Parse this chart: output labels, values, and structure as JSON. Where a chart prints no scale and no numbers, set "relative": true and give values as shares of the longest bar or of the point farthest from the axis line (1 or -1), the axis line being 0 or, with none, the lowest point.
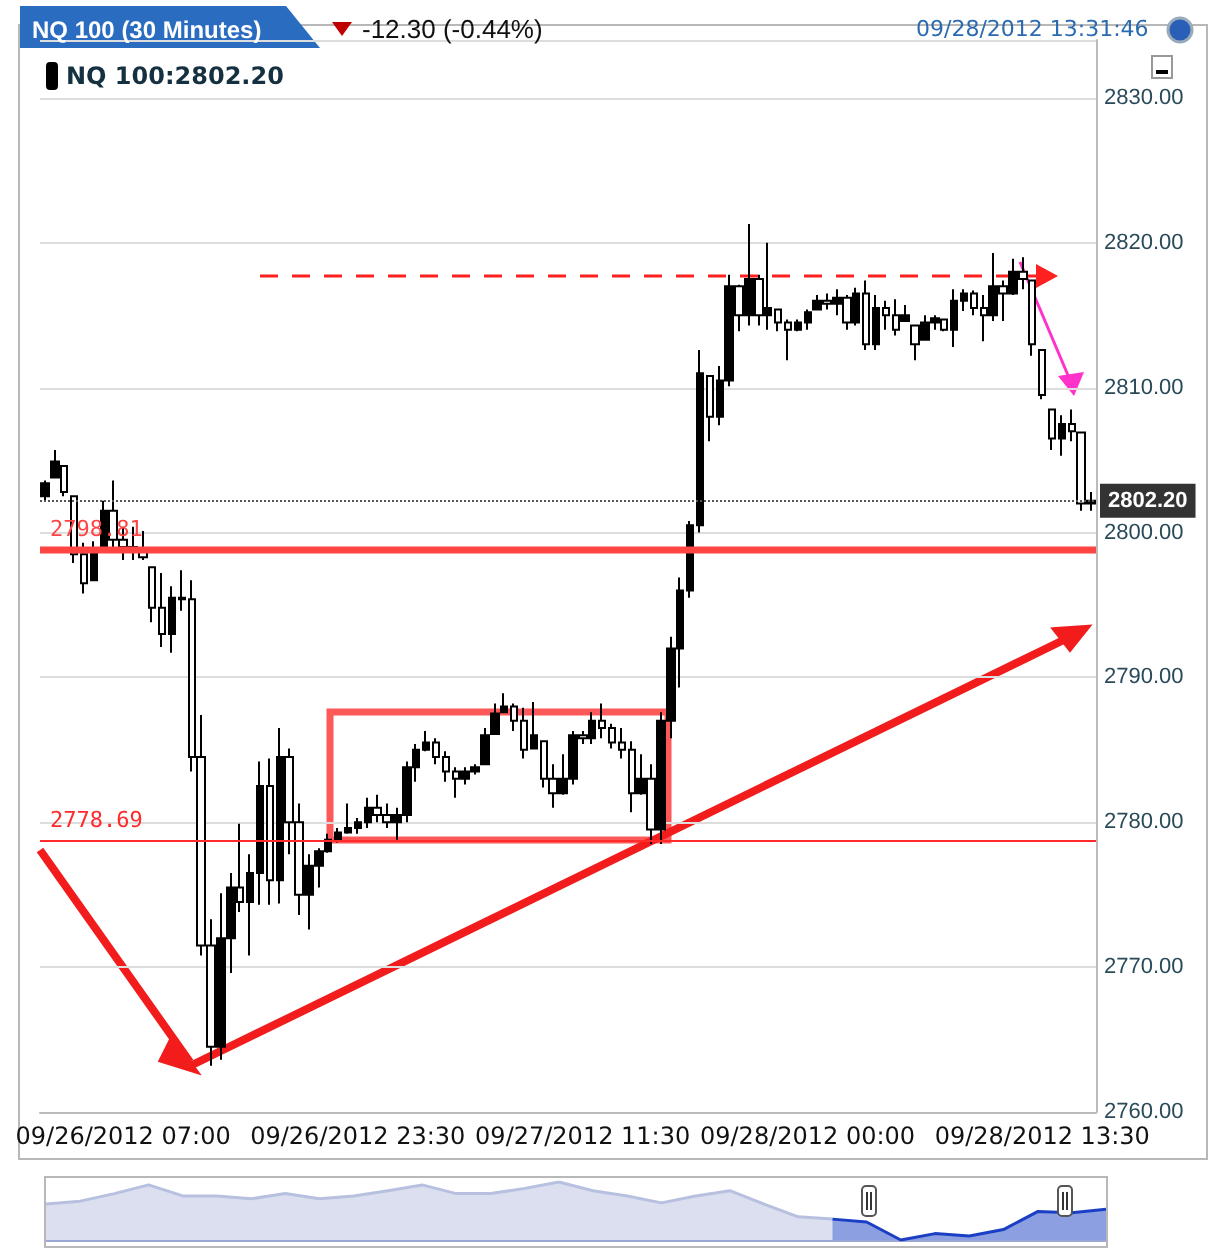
{
  "chart_data": [
    {
      "type": "candlestick",
      "title": "NQ 100 (30 Minutes)",
      "annotations": [
        "-12.30 (-0.44%)",
        "09/28/2012 13:31:46"
      ],
      "categories": [
        null,
        null,
        null,
        null,
        null,
        null,
        null,
        null,
        "09/26/2012 07:00",
        null,
        null,
        null,
        null,
        null,
        null,
        null,
        null,
        null,
        null,
        null,
        null,
        null,
        null,
        null,
        null,
        null,
        null,
        null,
        null,
        null,
        null,
        null,
        "09/26/2012 23:30",
        null,
        null,
        null,
        null,
        null,
        null,
        null,
        null,
        null,
        null,
        null,
        null,
        null,
        null,
        null,
        null,
        null,
        null,
        null,
        null,
        null,
        null,
        "09/27/2012 11:30",
        null,
        null,
        null,
        null,
        null,
        null,
        null,
        null,
        null,
        null,
        null,
        null,
        null,
        null,
        null,
        null,
        null,
        null,
        null,
        null,
        null,
        null,
        "09/28/2012 00:00",
        null,
        null,
        null,
        null,
        null,
        null,
        null,
        null,
        null,
        null,
        null,
        null,
        null,
        null,
        null,
        null,
        null,
        null,
        null,
        null,
        null,
        null,
        null,
        "09/28/2012 13:30",
        null,
        null,
        null,
        null,
        null
      ],
      "series": [
        {
          "name": "NQ 100:2802.20",
          "color": "#000000",
          "ohlc": [
            [
              2802.5,
              2803.6,
              2802.2,
              2803.4
            ],
            [
              2803.8,
              2805.7,
              2803.8,
              2804.9
            ],
            [
              2804.6,
              2804.6,
              2802.5,
              2802.8
            ],
            [
              2802.5,
              2802.5,
              2797.9,
              2798.5
            ],
            [
              2798.5,
              2799.3,
              2795.8,
              2796.5
            ],
            [
              2796.7,
              2799.4,
              2796.7,
              2798.9
            ],
            [
              2799.0,
              2802.2,
              2799.0,
              2801.5
            ],
            [
              2801.5,
              2803.6,
              2798.8,
              2799.5
            ],
            [
              2799.5,
              2800.4,
              2798.1,
              2799.0
            ],
            [
              2799.0,
              2800.4,
              2798.1,
              2798.9
            ],
            [
              2798.9,
              2800.1,
              2798.1,
              2798.3
            ],
            [
              2797.6,
              2797.6,
              2793.8,
              2794.8
            ],
            [
              2794.8,
              2797.2,
              2792.1,
              2793.0
            ],
            [
              2793.0,
              2796.3,
              2791.7,
              2795.5
            ],
            [
              2795.5,
              2797.4,
              2794.6,
              2795.4
            ],
            [
              2795.4,
              2796.7,
              2783.5,
              2784.5
            ],
            [
              2784.5,
              2787.4,
              2770.8,
              2771.5
            ],
            [
              2771.5,
              2773.3,
              2763.2,
              2764.5
            ],
            [
              2764.5,
              2775.1,
              2763.6,
              2772.0
            ],
            [
              2772.0,
              2776.5,
              2769.6,
              2775.5
            ],
            [
              2775.5,
              2779.9,
              2773.8,
              2774.5
            ],
            [
              2774.5,
              2777.8,
              2770.8,
              2776.5
            ],
            [
              2776.5,
              2784.2,
              2774.3,
              2782.5
            ],
            [
              2782.5,
              2784.4,
              2774.3,
              2776.0
            ],
            [
              2776.0,
              2786.5,
              2774.4,
              2784.5
            ],
            [
              2784.5,
              2785.1,
              2777.8,
              2780.0
            ],
            [
              2780.0,
              2781.3,
              2773.6,
              2775.0
            ],
            [
              2775.0,
              2777.8,
              2772.6,
              2777.0
            ],
            [
              2777.0,
              2778.2,
              2775.5,
              2778.0
            ],
            [
              2778.0,
              2779.2,
              2777.9,
              2778.8
            ],
            [
              2778.8,
              2779.6,
              2778.6,
              2779.3
            ],
            [
              2779.3,
              2781.3,
              2779.2,
              2779.6
            ],
            [
              2779.6,
              2780.3,
              2779.2,
              2780.0
            ],
            [
              2780.0,
              2781.7,
              2779.6,
              2781.0
            ],
            [
              2781.0,
              2781.9,
              2780.0,
              2780.5
            ],
            [
              2780.5,
              2781.3,
              2779.6,
              2780.0
            ],
            [
              2780.0,
              2781.0,
              2778.8,
              2780.5
            ],
            [
              2780.5,
              2784.2,
              2780.0,
              2783.8
            ],
            [
              2783.8,
              2785.4,
              2782.8,
              2785.0
            ],
            [
              2785.0,
              2786.3,
              2784.9,
              2785.5
            ],
            [
              2785.5,
              2785.8,
              2784.0,
              2784.5
            ],
            [
              2784.5,
              2784.9,
              2782.8,
              2783.5
            ],
            [
              2783.5,
              2783.8,
              2781.7,
              2783.0
            ],
            [
              2783.0,
              2783.8,
              2782.6,
              2783.5
            ],
            [
              2783.5,
              2784.0,
              2783.3,
              2783.8
            ],
            [
              2784.0,
              2786.5,
              2784.0,
              2786.0
            ],
            [
              2786.1,
              2788.2,
              2786.1,
              2787.5
            ],
            [
              2787.6,
              2788.9,
              2787.6,
              2788.0
            ],
            [
              2788.0,
              2788.2,
              2786.3,
              2787.0
            ],
            [
              2787.0,
              2787.9,
              2784.4,
              2785.0
            ],
            [
              2785.1,
              2788.3,
              2785.1,
              2786.0
            ],
            [
              2785.6,
              2785.6,
              2782.4,
              2783.0
            ],
            [
              2783.0,
              2784.0,
              2781.0,
              2782.0
            ],
            [
              2782.0,
              2784.7,
              2781.9,
              2783.0
            ],
            [
              2783.0,
              2786.3,
              2782.6,
              2786.0
            ],
            [
              2786.0,
              2786.3,
              2785.4,
              2785.8
            ],
            [
              2785.8,
              2787.6,
              2785.4,
              2787.0
            ],
            [
              2787.0,
              2788.2,
              2785.8,
              2786.5
            ],
            [
              2786.5,
              2786.8,
              2785.1,
              2785.5
            ],
            [
              2785.5,
              2786.5,
              2784.4,
              2785.0
            ],
            [
              2785.0,
              2785.6,
              2780.7,
              2782.0
            ],
            [
              2782.0,
              2784.7,
              2781.9,
              2783.0
            ],
            [
              2783.0,
              2784.0,
              2778.5,
              2779.5
            ],
            [
              2779.5,
              2787.6,
              2778.5,
              2787.0
            ],
            [
              2787.0,
              2792.8,
              2785.8,
              2792.0
            ],
            [
              2792.0,
              2796.9,
              2789.3,
              2796.0
            ],
            [
              2796.0,
              2800.8,
              2795.5,
              2800.5
            ],
            [
              2800.5,
              2812.6,
              2800.0,
              2811.0
            ],
            [
              2810.8,
              2810.8,
              2806.3,
              2808.0
            ],
            [
              2808.0,
              2811.5,
              2807.4,
              2810.5
            ],
            [
              2810.5,
              2817.8,
              2810.1,
              2817.0
            ],
            [
              2817.0,
              2817.1,
              2813.9,
              2815.0
            ],
            [
              2815.0,
              2821.3,
              2814.3,
              2817.5
            ],
            [
              2817.5,
              2817.8,
              2814.3,
              2815.0
            ],
            [
              2815.0,
              2820.0,
              2814.0,
              2815.5
            ],
            [
              2815.4,
              2815.4,
              2813.9,
              2814.5
            ],
            [
              2814.5,
              2814.7,
              2811.9,
              2814.0
            ],
            [
              2814.0,
              2814.7,
              2813.9,
              2814.5
            ],
            [
              2814.5,
              2815.4,
              2814.0,
              2815.2
            ],
            [
              2815.4,
              2816.4,
              2815.4,
              2816.0
            ],
            [
              2816.0,
              2816.5,
              2815.4,
              2815.8
            ],
            [
              2815.8,
              2816.8,
              2815.0,
              2816.2
            ],
            [
              2816.2,
              2816.4,
              2814.0,
              2814.5
            ],
            [
              2814.5,
              2816.9,
              2814.3,
              2816.5
            ],
            [
              2816.5,
              2817.4,
              2812.6,
              2813.0
            ],
            [
              2813.0,
              2816.4,
              2812.6,
              2815.5
            ],
            [
              2815.5,
              2816.0,
              2814.0,
              2815.0
            ],
            [
              2815.0,
              2816.1,
              2813.6,
              2814.0
            ],
            [
              2814.6,
              2815.7,
              2814.6,
              2815.0
            ],
            [
              2814.3,
              2814.3,
              2811.9,
              2813.0
            ],
            [
              2813.3,
              2815.0,
              2813.3,
              2814.5
            ],
            [
              2814.5,
              2815.0,
              2814.0,
              2814.8
            ],
            [
              2814.7,
              2814.7,
              2813.9,
              2814.0
            ],
            [
              2814.0,
              2816.8,
              2812.8,
              2816.0
            ],
            [
              2816.0,
              2816.8,
              2815.3,
              2816.5
            ],
            [
              2816.5,
              2816.7,
              2815.0,
              2815.5
            ],
            [
              2815.5,
              2816.4,
              2813.2,
              2815.0
            ],
            [
              2815.0,
              2819.3,
              2814.6,
              2817.0
            ],
            [
              2817.0,
              2817.4,
              2814.6,
              2816.5
            ],
            [
              2816.5,
              2818.9,
              2816.4,
              2818.0
            ],
            [
              2818.0,
              2819.0,
              2816.8,
              2817.5
            ],
            [
              2817.4,
              2817.4,
              2812.2,
              2813.0
            ],
            [
              2812.6,
              2812.6,
              2809.2,
              2809.5
            ],
            [
              2808.5,
              2808.5,
              2805.7,
              2806.5
            ],
            [
              2806.5,
              2808.1,
              2805.3,
              2807.5
            ],
            [
              2807.5,
              2808.5,
              2806.3,
              2807.0
            ],
            [
              2806.9,
              2806.9,
              2801.5,
              2802.0
            ],
            [
              2802.0,
              2802.8,
              2801.5,
              2802.2
            ]
          ]
        }
      ],
      "ylim": [
        2760,
        2834
      ],
      "yticks": [
        {
          "value": 2760,
          "label": "2760.00"
        },
        {
          "value": 2770,
          "label": "2770.00"
        },
        {
          "value": 2780,
          "label": "2780.00"
        },
        {
          "value": 2790,
          "label": "2790.00"
        },
        {
          "value": 2800,
          "label": "2800.00"
        },
        {
          "value": 2810,
          "label": "2810.00"
        },
        {
          "value": 2820,
          "label": "2820.00"
        },
        {
          "value": 2830,
          "label": "2830.00"
        }
      ],
      "grid": "y",
      "legend": "top left",
      "ref_lines": [
        {
          "axis": "y",
          "value": 2798.81,
          "label": "2798.81",
          "color": "#ff4444"
        },
        {
          "axis": "y",
          "value": 2778.69,
          "label": "2778.69",
          "color": "#ff2a2a"
        },
        {
          "axis": "y",
          "value": 2802.2,
          "label": "2802.20",
          "color": "#555555",
          "line_style": "dotted"
        }
      ]
    },
    {
      "type": "area",
      "relative": true,
      "categories": [
        null,
        null,
        null,
        null,
        null,
        null,
        null,
        null,
        null,
        null,
        null,
        null,
        null,
        null,
        null,
        null,
        null,
        null,
        null,
        null,
        null,
        null,
        null,
        null,
        null,
        null,
        null,
        null,
        null,
        null,
        null,
        null
      ],
      "series": [
        {
          "color": "#b8c0e0",
          "values": [
            0.62,
            0.67,
            0.8,
            0.95,
            0.76,
            0.76,
            0.71,
            0.8,
            0.71,
            0.76,
            0.85,
            0.95,
            0.8,
            0.8,
            0.89,
            1,
            0.85,
            0.76,
            0.64,
            0.76,
            0.85,
            0.62,
            0.4,
            0.36,
            null,
            null,
            null,
            null,
            null,
            null,
            null,
            null
          ]
        },
        {
          "color": "#1a3fc4",
          "values": [
            null,
            null,
            null,
            null,
            null,
            null,
            null,
            null,
            null,
            null,
            null,
            null,
            null,
            null,
            null,
            null,
            null,
            null,
            null,
            null,
            null,
            null,
            null,
            0.36,
            0.31,
            0,
            0.11,
            0.07,
            0.18,
            0.49,
            0.47,
            0.53
          ]
        }
      ]
    }
  ]
}
